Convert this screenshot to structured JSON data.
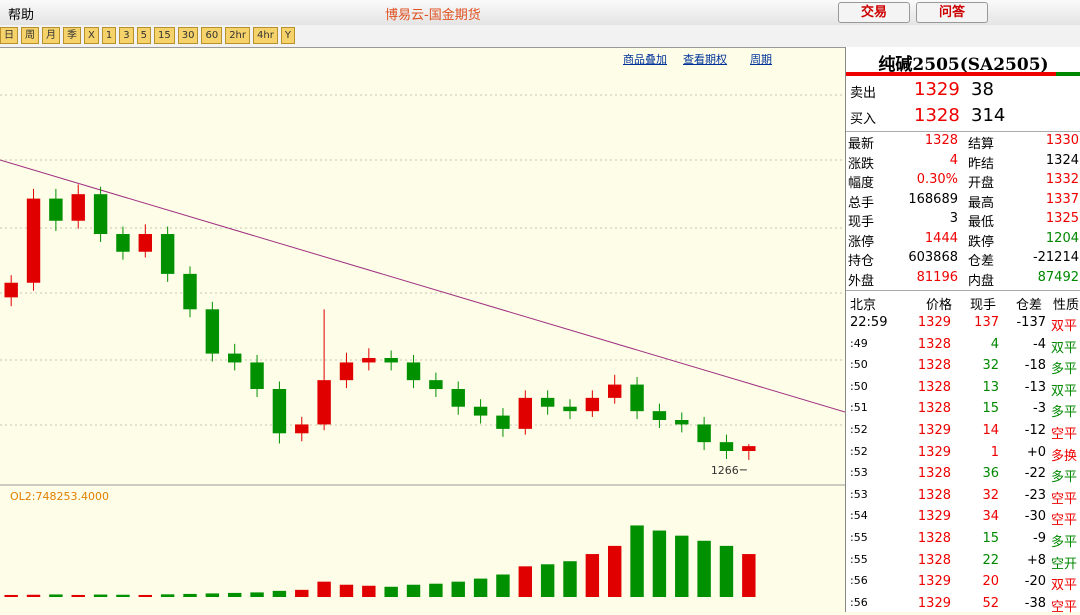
{
  "header": {
    "menu": "帮助",
    "title": "博易云-国金期货",
    "buttons": [
      "交易",
      "问答"
    ]
  },
  "toolbar": [
    "日",
    "周",
    "月",
    "季",
    "X",
    "1",
    "3",
    "5",
    "15",
    "30",
    "60",
    "2hr",
    "4hr",
    "Y"
  ],
  "chart_links": [
    "商品叠加",
    "查看期权",
    "周期"
  ],
  "kline": {
    "ylim": [
      1166,
      2914
    ],
    "candles": [
      [
        2000,
        2100,
        1960,
        2066
      ],
      [
        2066,
        2490,
        2030,
        2446
      ],
      [
        2446,
        2490,
        2300,
        2346
      ],
      [
        2346,
        2510,
        2310,
        2466
      ],
      [
        2466,
        2500,
        2250,
        2286
      ],
      [
        2286,
        2320,
        2170,
        2206
      ],
      [
        2206,
        2330,
        2180,
        2286
      ],
      [
        2286,
        2320,
        2070,
        2106
      ],
      [
        2106,
        2140,
        1910,
        1946
      ],
      [
        1946,
        1980,
        1710,
        1746
      ],
      [
        1746,
        1790,
        1670,
        1706
      ],
      [
        1706,
        1740,
        1550,
        1586
      ],
      [
        1586,
        1620,
        1340,
        1386
      ],
      [
        1386,
        1460,
        1350,
        1426
      ],
      [
        1426,
        1946,
        1400,
        1626
      ],
      [
        1626,
        1750,
        1590,
        1706
      ],
      [
        1706,
        1770,
        1670,
        1726
      ],
      [
        1726,
        1760,
        1670,
        1706
      ],
      [
        1706,
        1740,
        1590,
        1626
      ],
      [
        1626,
        1660,
        1550,
        1586
      ],
      [
        1586,
        1620,
        1470,
        1506
      ],
      [
        1506,
        1540,
        1430,
        1466
      ],
      [
        1466,
        1500,
        1370,
        1406
      ],
      [
        1406,
        1580,
        1380,
        1546
      ],
      [
        1546,
        1580,
        1470,
        1506
      ],
      [
        1506,
        1540,
        1450,
        1486
      ],
      [
        1486,
        1580,
        1460,
        1546
      ],
      [
        1546,
        1650,
        1520,
        1606
      ],
      [
        1606,
        1640,
        1450,
        1486
      ],
      [
        1486,
        1520,
        1410,
        1446
      ],
      [
        1446,
        1480,
        1390,
        1426
      ],
      [
        1426,
        1460,
        1310,
        1346
      ],
      [
        1346,
        1380,
        1270,
        1306
      ],
      [
        1306,
        1337,
        1266,
        1328
      ]
    ],
    "volume_label": "OL2:748253.4000",
    "volume_ylim": [
      0,
      900000
    ],
    "volumes": [
      20000,
      22000,
      25000,
      20000,
      24000,
      22000,
      20000,
      26000,
      30000,
      35000,
      40000,
      45000,
      60000,
      70000,
      150000,
      120000,
      110000,
      100000,
      120000,
      130000,
      150000,
      180000,
      220000,
      300000,
      320000,
      350000,
      420000,
      500000,
      700000,
      650000,
      600000,
      550000,
      500000,
      420000
    ]
  },
  "quote": {
    "name": "纯碱2505(SA2505)",
    "sell": {
      "label": "卖出",
      "price": 1329,
      "volume": 38
    },
    "buy": {
      "label": "买入",
      "price": 1328,
      "volume": 314
    },
    "stats": [
      [
        "最新",
        "1328",
        "结算",
        "1330"
      ],
      [
        "涨跌",
        "4",
        "昨结",
        "1324"
      ],
      [
        "幅度",
        "0.30%",
        "开盘",
        "1332"
      ],
      [
        "总手",
        "168689",
        "最高",
        "1337"
      ],
      [
        "现手",
        "3",
        "最低",
        "1325"
      ],
      [
        "涨停",
        "1444",
        "跌停",
        "1204"
      ],
      [
        "持仓",
        "603868",
        "仓差",
        "-21214"
      ],
      [
        "外盘",
        "81196",
        "内盘",
        "87492"
      ]
    ]
  },
  "ticks": {
    "header": [
      "北京",
      "价格",
      "现手",
      "仓差",
      "性质"
    ],
    "rows": [
      [
        "22:59",
        "1329",
        "137",
        "-137",
        "双平"
      ],
      [
        ":49",
        "1328",
        "4",
        "-4",
        "双平"
      ],
      [
        ":50",
        "1328",
        "32",
        "-18",
        "多平"
      ],
      [
        ":50",
        "1328",
        "13",
        "-13",
        "双平"
      ],
      [
        ":51",
        "1328",
        "15",
        "-3",
        "多平"
      ],
      [
        ":52",
        "1329",
        "14",
        "-12",
        "空平"
      ],
      [
        ":52",
        "1329",
        "1",
        "+0",
        "多换"
      ],
      [
        ":53",
        "1328",
        "36",
        "-22",
        "多平"
      ],
      [
        ":53",
        "1328",
        "32",
        "-23",
        "空平"
      ],
      [
        ":54",
        "1329",
        "34",
        "-30",
        "空平"
      ],
      [
        ":55",
        "1328",
        "15",
        "-9",
        "多平"
      ],
      [
        ":55",
        "1328",
        "22",
        "+8",
        "空开"
      ],
      [
        ":56",
        "1329",
        "20",
        "-20",
        "双平"
      ],
      [
        ":56",
        "1329",
        "52",
        "-38",
        "空平"
      ]
    ],
    "colors": [
      "red",
      "green",
      "green",
      "green",
      "green",
      "red",
      "red",
      "green",
      "red",
      "red",
      "green",
      "green",
      "red",
      "red"
    ]
  }
}
